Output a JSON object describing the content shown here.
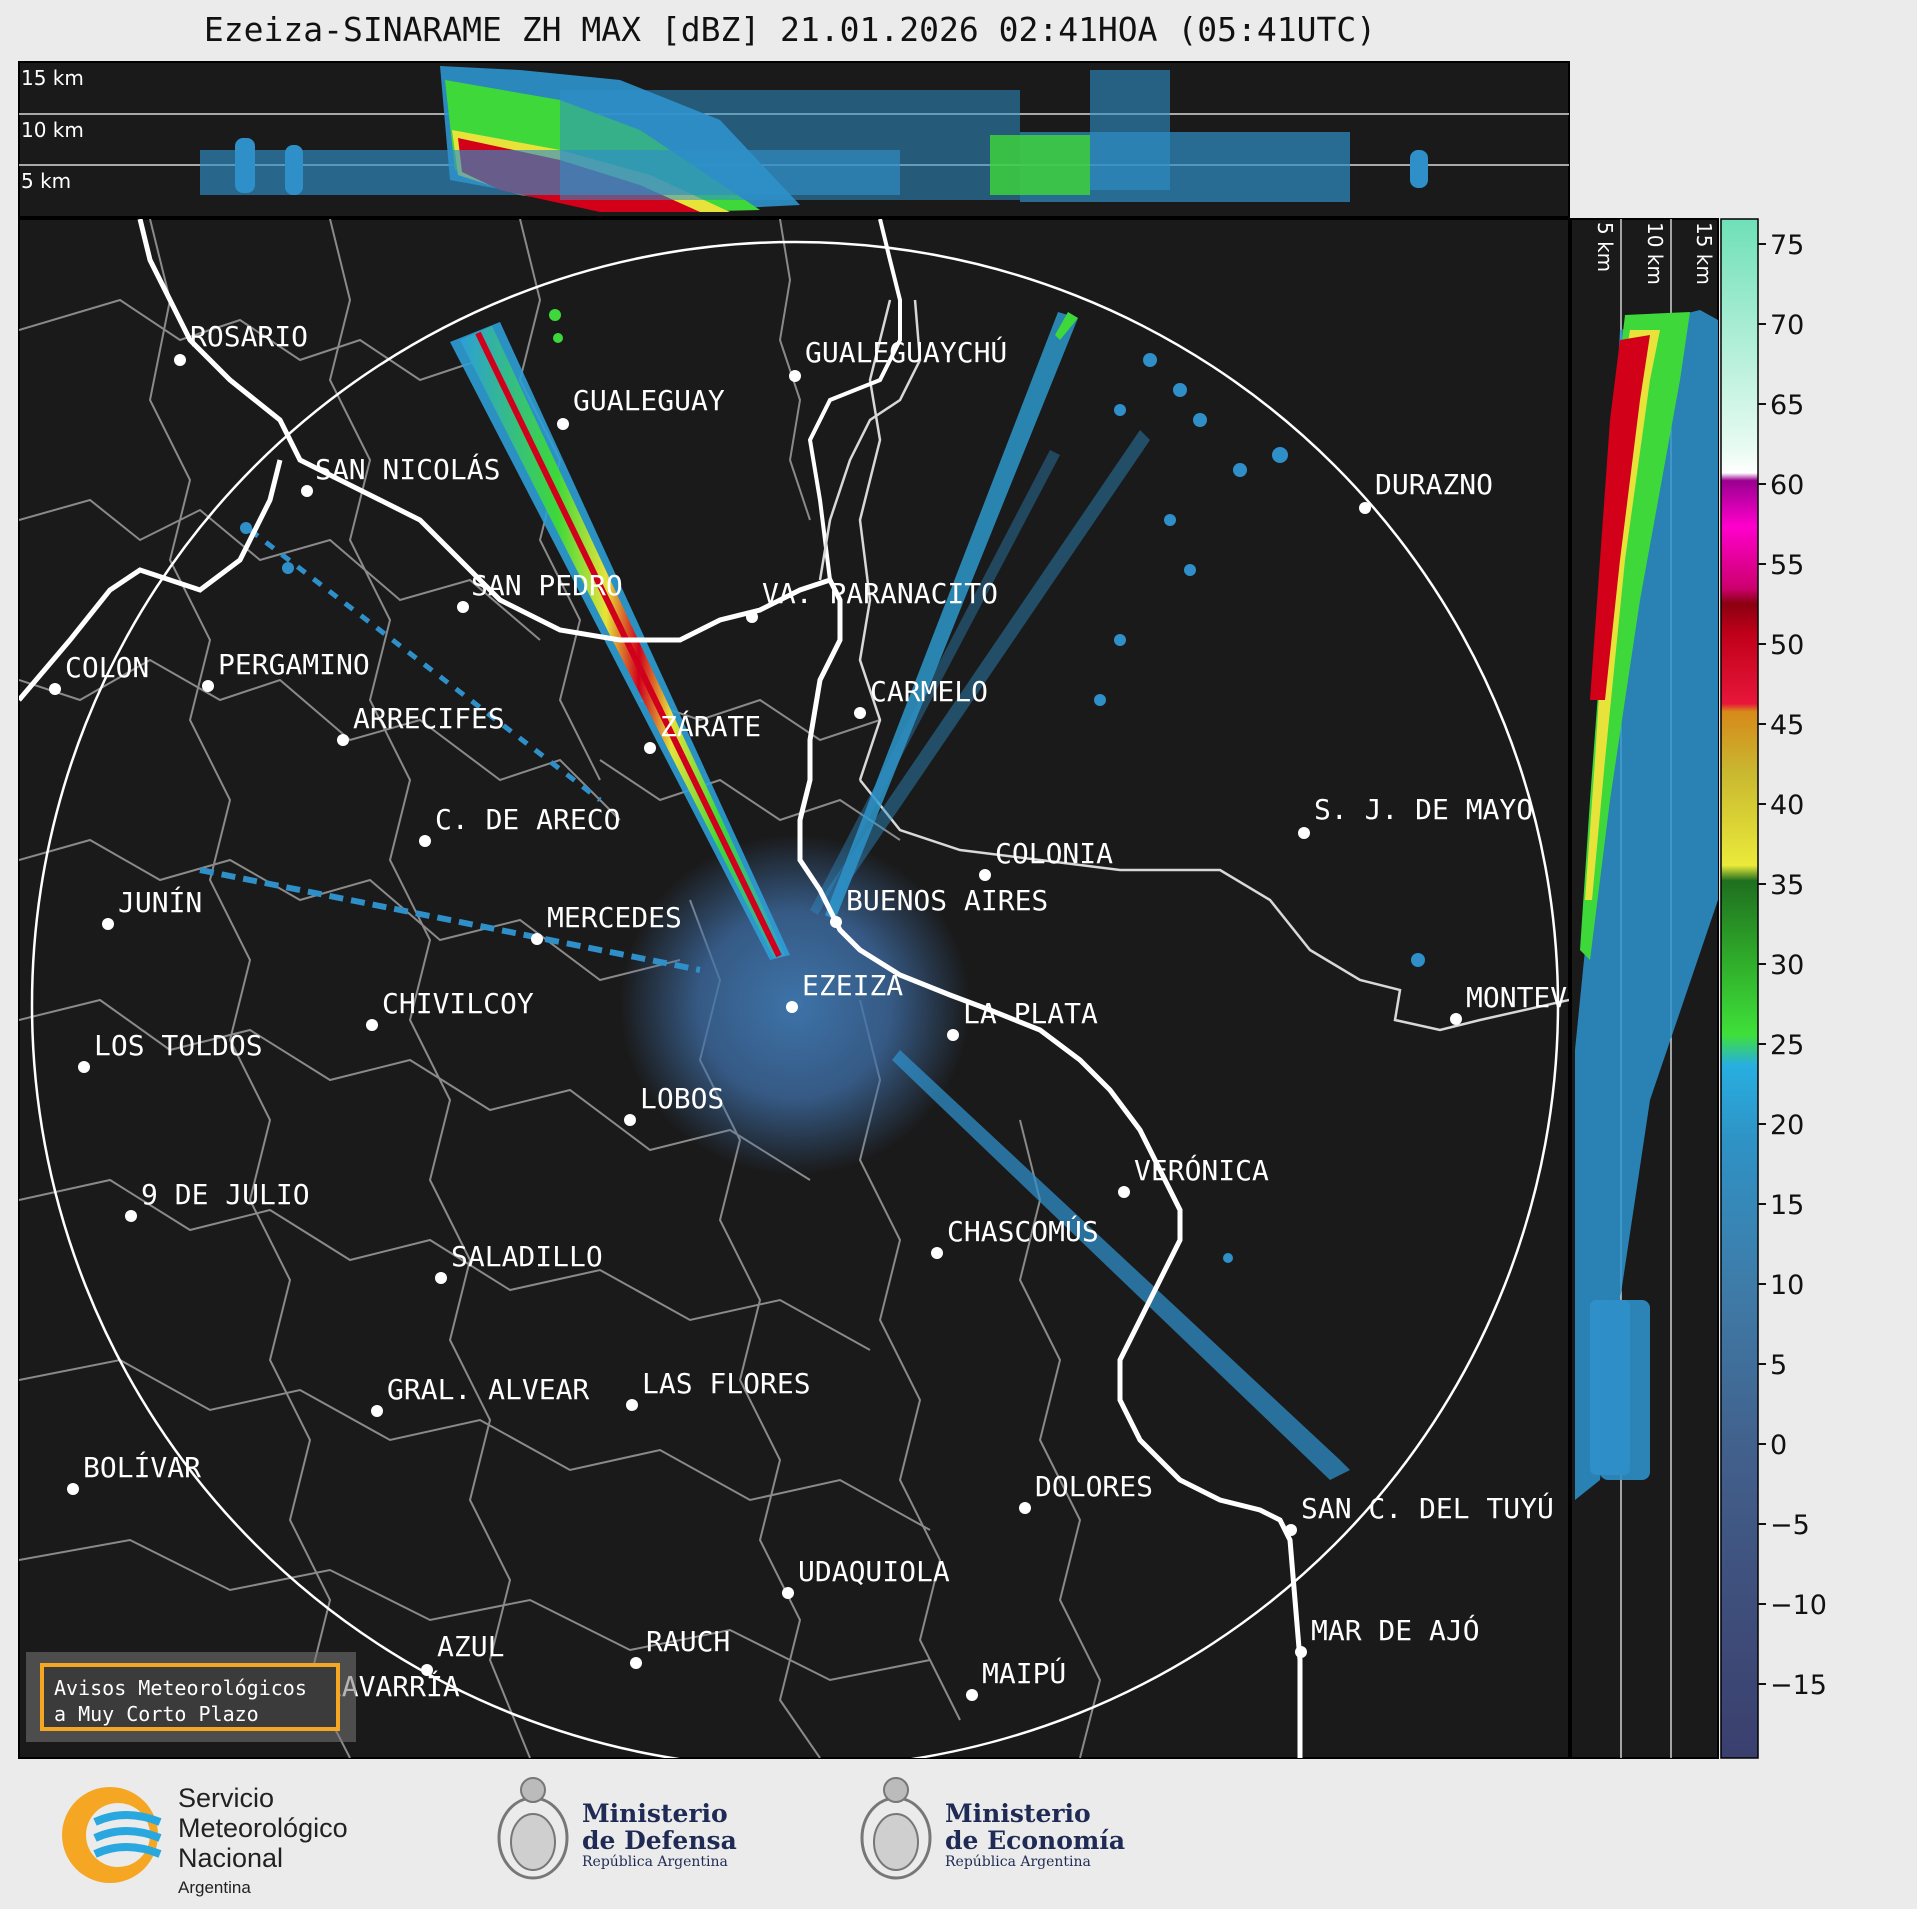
{
  "title": "Ezeiza-SINARAME ZH MAX [dBZ] 21.01.2026 02:41HOA (05:41UTC)",
  "height_labels": [
    "15 km",
    "10 km",
    "5 km"
  ],
  "side_height_labels": [
    "5 km",
    "10 km",
    "15 km"
  ],
  "colorbar": {
    "ticks": [
      "75",
      "70",
      "65",
      "60",
      "55",
      "50",
      "45",
      "40",
      "35",
      "30",
      "25",
      "20",
      "15",
      "10",
      "5",
      "0",
      "−5",
      "−10",
      "−15"
    ]
  },
  "cities": [
    {
      "name": "ROSARIO"
    },
    {
      "name": "GUALEGUAYCHÚ"
    },
    {
      "name": "GUALEGUAY"
    },
    {
      "name": "SAN NICOLÁS"
    },
    {
      "name": "DURAZNO"
    },
    {
      "name": "SAN PEDRO"
    },
    {
      "name": "VA. PARANACITO"
    },
    {
      "name": "COLON"
    },
    {
      "name": "PERGAMINO"
    },
    {
      "name": "CARMELO"
    },
    {
      "name": "ARRECIFES"
    },
    {
      "name": "ZÁRATE"
    },
    {
      "name": "S. J. DE MAYO"
    },
    {
      "name": "C. DE ARECO"
    },
    {
      "name": "COLONIA"
    },
    {
      "name": "JUNÍN"
    },
    {
      "name": "BUENOS AIRES"
    },
    {
      "name": "MERCEDES"
    },
    {
      "name": "EZEIZA"
    },
    {
      "name": "MONTEVIDEO"
    },
    {
      "name": "CHIVILCOY"
    },
    {
      "name": "LA PLATA"
    },
    {
      "name": "LOS TOLDOS"
    },
    {
      "name": "LOBOS"
    },
    {
      "name": "VERÓNICA"
    },
    {
      "name": "9 DE JULIO"
    },
    {
      "name": "CHASCOMÚS"
    },
    {
      "name": "SALADILLO"
    },
    {
      "name": "GRAL. ALVEAR"
    },
    {
      "name": "LAS FLORES"
    },
    {
      "name": "BOLÍVAR"
    },
    {
      "name": "DOLORES"
    },
    {
      "name": "SAN C. DEL TUYÚ"
    },
    {
      "name": "UDAQUIOLA"
    },
    {
      "name": "MAR DE AJÓ"
    },
    {
      "name": "AZUL"
    },
    {
      "name": "RAUCH"
    },
    {
      "name": "OLAVARRÍA"
    },
    {
      "name": "MAIPÚ"
    }
  ],
  "warning": {
    "line1": "Avisos Meteorológicos",
    "line2": "a Muy Corto Plazo"
  },
  "logos": {
    "smn": {
      "line1": "Servicio",
      "line2": "Meteorológico",
      "line3": "Nacional",
      "line4": "Argentina"
    },
    "defensa": {
      "line1": "Ministerio",
      "line2": "de Defensa",
      "line3": "República Argentina"
    },
    "economia": {
      "line1": "Ministerio",
      "line2": "de Economía",
      "line3": "República Argentina"
    }
  },
  "colors": {
    "background": "#1a1a1a",
    "ring": "#ffffff",
    "coast": "#ffffff",
    "borders": "#8a8a8a",
    "accent_warning": "#f5a623"
  }
}
